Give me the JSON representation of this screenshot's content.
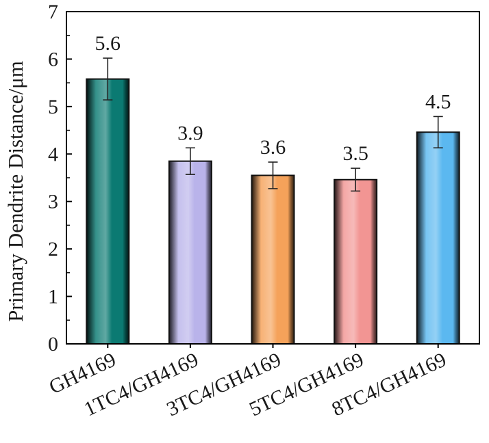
{
  "chart_data": {
    "type": "bar",
    "categories": [
      "GH4169",
      "1TC4/GH4169",
      "3TC4/GH4169",
      "5TC4/GH4169",
      "8TC4/GH4169"
    ],
    "values": [
      5.58,
      3.85,
      3.55,
      3.46,
      4.46
    ],
    "errors": [
      0.44,
      0.28,
      0.28,
      0.24,
      0.33
    ],
    "data_labels": [
      "5.6",
      "3.9",
      "3.6",
      "3.5",
      "4.5"
    ],
    "colors": [
      "#0b7a72",
      "#b9b3ea",
      "#f5a25a",
      "#f29593",
      "#5bb8f0"
    ],
    "title": "",
    "xlabel": "",
    "ylabel": "Primary Dendrite Distance/μm",
    "ylim": [
      0,
      7
    ],
    "yticks": [
      "0",
      "1",
      "2",
      "3",
      "4",
      "5",
      "6",
      "7"
    ],
    "grid": false,
    "legend": "none"
  }
}
